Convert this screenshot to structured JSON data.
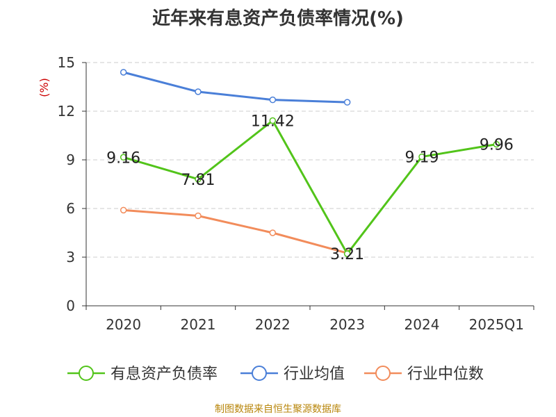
{
  "chart_data": {
    "type": "line",
    "title": "近年来有息资产负债率情况(%)",
    "ylabel": "(%)",
    "xlabel": "",
    "categories": [
      "2020",
      "2021",
      "2022",
      "2023",
      "2024",
      "2025Q1"
    ],
    "ylim": [
      0,
      15
    ],
    "yticks": [
      0,
      3,
      6,
      9,
      12,
      15
    ],
    "grid": true,
    "legend_position": "bottom",
    "series": [
      {
        "name": "有息资产负债率",
        "color": "#52c41a",
        "values": [
          9.16,
          7.81,
          11.42,
          3.21,
          9.19,
          9.96
        ],
        "labels": [
          "9.16",
          "7.81",
          "11.42",
          "3.21",
          "9.19",
          "9.96"
        ]
      },
      {
        "name": "行业均值",
        "color": "#4a7fd8",
        "values": [
          14.4,
          13.2,
          12.7,
          12.55,
          null,
          null
        ]
      },
      {
        "name": "行业中位数",
        "color": "#f28c5b",
        "values": [
          5.9,
          5.55,
          4.5,
          3.25,
          null,
          null
        ]
      }
    ]
  },
  "source": "制图数据来自恒生聚源数据库"
}
